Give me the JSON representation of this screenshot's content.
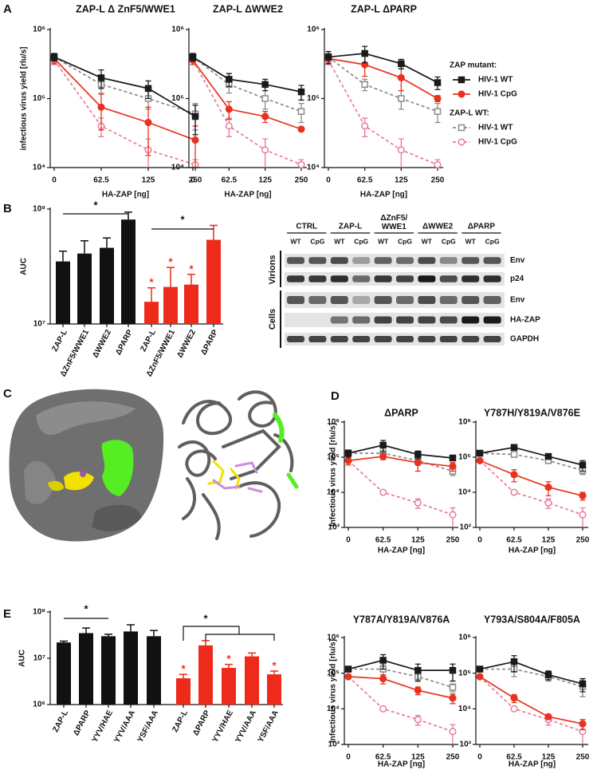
{
  "panels": [
    "A",
    "B",
    "C",
    "D",
    "E"
  ],
  "chart_data": [
    {
      "type": "line",
      "title": "ZAP-L Δ ZnF5/WWE1",
      "y_label": "infectious virus yield [rlu/s]",
      "x_label": "HA-ZAP [ng]",
      "categories": [
        "0",
        "62.5",
        "125",
        "250"
      ],
      "log_y": true,
      "ylim": [
        10000,
        1000000
      ],
      "yticks": [
        {
          "value": 10000,
          "label": "10⁴"
        },
        {
          "value": 100000,
          "label": "10⁵"
        },
        {
          "value": 1000000,
          "label": "10⁶"
        }
      ],
      "series": [
        {
          "color": "#1a1a1a",
          "marker": "square",
          "filled": true,
          "dashed": false,
          "values": [
            400000,
            200000,
            140000,
            55000
          ],
          "errors": [
            50000,
            60000,
            40000,
            25000
          ]
        },
        {
          "color": "#e8321e",
          "marker": "circle",
          "filled": true,
          "dashed": false,
          "values": [
            380000,
            75000,
            45000,
            25000
          ],
          "errors": [
            60000,
            40000,
            30000,
            15000
          ]
        },
        {
          "color": "#8a8a8a",
          "marker": "square",
          "filled": false,
          "dashed": true,
          "values": [
            400000,
            160000,
            100000,
            60000
          ],
          "errors": [
            50000,
            40000,
            30000,
            25000
          ]
        },
        {
          "color": "#e87a9a",
          "marker": "circle",
          "filled": false,
          "dashed": true,
          "values": [
            360000,
            40000,
            18000,
            11000
          ],
          "errors": [
            50000,
            12000,
            8000,
            2000
          ]
        }
      ]
    },
    {
      "type": "line",
      "title": "ZAP-L ΔWWE2",
      "x_label": "HA-ZAP [ng]",
      "categories": [
        "0",
        "62.5",
        "125",
        "250"
      ],
      "log_y": true,
      "ylim": [
        10000,
        1000000
      ],
      "yticks": [
        {
          "value": 10000,
          "label": "10⁴"
        },
        {
          "value": 100000,
          "label": "10⁵"
        },
        {
          "value": 1000000,
          "label": "10⁶"
        }
      ],
      "series": [
        {
          "color": "#1a1a1a",
          "marker": "square",
          "filled": true,
          "dashed": false,
          "values": [
            400000,
            190000,
            160000,
            125000
          ],
          "errors": [
            50000,
            40000,
            30000,
            30000
          ]
        },
        {
          "color": "#e8321e",
          "marker": "circle",
          "filled": true,
          "dashed": false,
          "values": [
            360000,
            70000,
            55000,
            36000
          ],
          "errors": [
            50000,
            20000,
            10000,
            0
          ]
        },
        {
          "color": "#8a8a8a",
          "marker": "square",
          "filled": false,
          "dashed": true,
          "values": [
            400000,
            160000,
            100000,
            65000
          ],
          "errors": [
            50000,
            40000,
            30000,
            20000
          ]
        },
        {
          "color": "#e87a9a",
          "marker": "circle",
          "filled": false,
          "dashed": true,
          "values": [
            360000,
            40000,
            18000,
            11000
          ],
          "errors": [
            50000,
            12000,
            8000,
            2000
          ]
        }
      ]
    },
    {
      "type": "line",
      "title": "ZAP-L ΔPARP",
      "x_label": "HA-ZAP [ng]",
      "categories": [
        "0",
        "62.5",
        "125",
        "250"
      ],
      "log_y": true,
      "ylim": [
        10000,
        1000000
      ],
      "yticks": [
        {
          "value": 10000,
          "label": "10⁴"
        },
        {
          "value": 100000,
          "label": "10⁵"
        },
        {
          "value": 1000000,
          "label": "10⁶"
        }
      ],
      "legend_groups": [
        "ZAP mutant:",
        "ZAP-L WT:"
      ],
      "series": [
        {
          "name": "HIV-1 WT",
          "group": 0,
          "color": "#1a1a1a",
          "marker": "square",
          "filled": true,
          "dashed": false,
          "values": [
            400000,
            450000,
            320000,
            170000
          ],
          "errors": [
            80000,
            120000,
            50000,
            35000
          ]
        },
        {
          "name": "HIV-1 CpG",
          "group": 0,
          "color": "#e8321e",
          "marker": "circle",
          "filled": true,
          "dashed": false,
          "values": [
            380000,
            310000,
            200000,
            100000
          ],
          "errors": [
            60000,
            100000,
            70000,
            10000
          ]
        },
        {
          "name": "HIV-1 WT",
          "group": 1,
          "color": "#8a8a8a",
          "marker": "square",
          "filled": false,
          "dashed": true,
          "values": [
            400000,
            160000,
            100000,
            65000
          ],
          "errors": [
            50000,
            30000,
            30000,
            20000
          ]
        },
        {
          "name": "HIV-1 CpG",
          "group": 1,
          "color": "#e87a9a",
          "marker": "circle",
          "filled": false,
          "dashed": true,
          "values": [
            360000,
            40000,
            18000,
            11000
          ],
          "errors": [
            50000,
            12000,
            8000,
            2000
          ]
        }
      ]
    },
    {
      "type": "bar",
      "y_label": "AUC",
      "categories": [
        "ZAP-L",
        "ΔZnF5/WWE1",
        "ΔWWE2",
        "ΔPARP",
        "ZAP-L",
        "ΔZnF5/WWE1",
        "ΔWWE2",
        "ΔPARP"
      ],
      "colors": [
        "#111111",
        "#111111",
        "#111111",
        "#111111",
        "#ee2a1a",
        "#ee2a1a",
        "#ee2a1a",
        "#ee2a1a"
      ],
      "values": [
        35000000,
        41000000,
        46000000,
        81000000,
        15600000,
        21000000,
        22000000,
        54000000
      ],
      "errors": [
        8000000,
        12000000,
        10000000,
        13000000,
        5000000,
        10000000,
        5000000,
        18000000
      ],
      "sig_labels": [
        null,
        null,
        null,
        null,
        "*",
        "*",
        "*",
        null
      ],
      "sig_color": "#ee2a1a",
      "annotations": [
        "*",
        "*"
      ],
      "log_y": true,
      "ylim": [
        10000000,
        100000000
      ],
      "yticks": [
        {
          "value": 10000000,
          "label": "10⁷"
        },
        {
          "value": 100000000,
          "label": "10⁸"
        }
      ]
    },
    {
      "type": "line",
      "title": "ΔPARP",
      "y_label": "infectious virus yield [rlu/s]",
      "x_label": "HA-ZAP [ng]",
      "categories": [
        "0",
        "62.5",
        "125",
        "250"
      ],
      "log_y": true,
      "ylim": [
        1000,
        1000000
      ],
      "yticks": [
        {
          "value": 1000,
          "label": "10³"
        },
        {
          "value": 10000,
          "label": "10⁴"
        },
        {
          "value": 100000,
          "label": "10⁵"
        },
        {
          "value": 1000000,
          "label": "10⁶"
        }
      ],
      "series": [
        {
          "color": "#1a1a1a",
          "marker": "square",
          "filled": true,
          "dashed": false,
          "values": [
            130000,
            220000,
            120000,
            95000
          ],
          "errors": [
            30000,
            80000,
            30000,
            10000
          ]
        },
        {
          "color": "#e8321e",
          "marker": "circle",
          "filled": true,
          "dashed": false,
          "values": [
            80000,
            105000,
            70000,
            55000
          ],
          "errors": [
            20000,
            20000,
            30000,
            15000
          ]
        },
        {
          "color": "#8a8a8a",
          "marker": "square",
          "filled": false,
          "dashed": true,
          "values": [
            130000,
            130000,
            80000,
            40000
          ],
          "errors": [
            20000,
            20000,
            20000,
            10000
          ]
        },
        {
          "color": "#e87a9a",
          "marker": "circle",
          "filled": false,
          "dashed": true,
          "values": [
            80000,
            10000,
            5000,
            2300
          ],
          "errors": [
            10000,
            1000,
            1500,
            1300
          ]
        }
      ]
    },
    {
      "type": "line",
      "title": "Y787H/Y819A/V876E",
      "x_label": "HA-ZAP [ng]",
      "categories": [
        "0",
        "62.5",
        "125",
        "250"
      ],
      "log_y": true,
      "ylim": [
        1000,
        1000000
      ],
      "yticks": [
        {
          "value": 1000,
          "label": "10³"
        },
        {
          "value": 10000,
          "label": "10⁴"
        },
        {
          "value": 100000,
          "label": "10⁵"
        },
        {
          "value": 1000000,
          "label": "10⁶"
        }
      ],
      "series": [
        {
          "color": "#1a1a1a",
          "marker": "square",
          "filled": true,
          "dashed": false,
          "values": [
            130000,
            190000,
            105000,
            60000
          ],
          "errors": [
            20000,
            20000,
            10000,
            20000
          ]
        },
        {
          "color": "#e8321e",
          "marker": "circle",
          "filled": true,
          "dashed": false,
          "values": [
            80000,
            32000,
            14000,
            8000
          ],
          "errors": [
            10000,
            12000,
            6000,
            2000
          ]
        },
        {
          "color": "#8a8a8a",
          "marker": "square",
          "filled": false,
          "dashed": true,
          "values": [
            130000,
            120000,
            80000,
            42000
          ],
          "errors": [
            20000,
            20000,
            10000,
            10000
          ]
        },
        {
          "color": "#e87a9a",
          "marker": "circle",
          "filled": false,
          "dashed": true,
          "values": [
            80000,
            10000,
            5000,
            2300
          ],
          "errors": [
            10000,
            1000,
            1500,
            1300
          ]
        }
      ]
    },
    {
      "type": "line",
      "title": "Y787A/Y819A/V876A",
      "y_label": "infectious virus yield [rlu/s]",
      "x_label": "HA-ZAP [ng]",
      "categories": [
        "0",
        "62.5",
        "125",
        "250"
      ],
      "log_y": true,
      "ylim": [
        1000,
        1000000
      ],
      "yticks": [
        {
          "value": 1000,
          "label": "10³"
        },
        {
          "value": 10000,
          "label": "10⁴"
        },
        {
          "value": 100000,
          "label": "10⁵"
        },
        {
          "value": 1000000,
          "label": "10⁶"
        }
      ],
      "series": [
        {
          "color": "#1a1a1a",
          "marker": "square",
          "filled": true,
          "dashed": false,
          "values": [
            130000,
            230000,
            120000,
            120000
          ],
          "errors": [
            20000,
            100000,
            60000,
            60000
          ]
        },
        {
          "color": "#e8321e",
          "marker": "circle",
          "filled": true,
          "dashed": false,
          "values": [
            80000,
            70000,
            33000,
            20000
          ],
          "errors": [
            10000,
            20000,
            8000,
            6000
          ]
        },
        {
          "color": "#8a8a8a",
          "marker": "square",
          "filled": false,
          "dashed": true,
          "values": [
            130000,
            130000,
            80000,
            40000
          ],
          "errors": [
            20000,
            40000,
            20000,
            10000
          ]
        },
        {
          "color": "#e87a9a",
          "marker": "circle",
          "filled": false,
          "dashed": true,
          "values": [
            80000,
            10000,
            5000,
            2300
          ],
          "errors": [
            10000,
            1000,
            1500,
            1300
          ]
        }
      ]
    },
    {
      "type": "line",
      "title": "Y793A/S804A/F805A",
      "x_label": "HA-ZAP [ng]",
      "categories": [
        "0",
        "62.5",
        "125",
        "250"
      ],
      "log_y": true,
      "ylim": [
        1000,
        1000000
      ],
      "yticks": [
        {
          "value": 1000,
          "label": "10³"
        },
        {
          "value": 10000,
          "label": "10⁴"
        },
        {
          "value": 100000,
          "label": "10⁵"
        },
        {
          "value": 1000000,
          "label": "10⁶"
        }
      ],
      "series": [
        {
          "color": "#1a1a1a",
          "marker": "square",
          "filled": true,
          "dashed": false,
          "values": [
            130000,
            210000,
            90000,
            50000
          ],
          "errors": [
            20000,
            100000,
            25000,
            20000
          ]
        },
        {
          "color": "#e8321e",
          "marker": "circle",
          "filled": true,
          "dashed": false,
          "values": [
            80000,
            20000,
            6000,
            3800
          ],
          "errors": [
            10000,
            5000,
            1000,
            1200
          ]
        },
        {
          "color": "#8a8a8a",
          "marker": "square",
          "filled": false,
          "dashed": true,
          "values": [
            130000,
            130000,
            80000,
            42000
          ],
          "errors": [
            20000,
            50000,
            20000,
            20000
          ]
        },
        {
          "color": "#e87a9a",
          "marker": "circle",
          "filled": false,
          "dashed": true,
          "values": [
            80000,
            10000,
            5000,
            2300
          ],
          "errors": [
            10000,
            1000,
            1500,
            1300
          ]
        }
      ]
    },
    {
      "type": "bar",
      "y_label": "AUC",
      "categories": [
        "ZAP-L",
        "ΔPARP",
        "YYV/HAE",
        "YYV/AAA",
        "YSF/AAA",
        "ZAP-L",
        "ΔPARP",
        "YYV/HAE",
        "YYV/AAA",
        "YSF/AAA"
      ],
      "colors": [
        "#111111",
        "#111111",
        "#111111",
        "#111111",
        "#111111",
        "#ee2a1a",
        "#ee2a1a",
        "#ee2a1a",
        "#ee2a1a",
        "#ee2a1a"
      ],
      "values": [
        22000000,
        35000000,
        30000000,
        38000000,
        30000000,
        3700000,
        19000000,
        6200000,
        11000000,
        4500000
      ],
      "errors": [
        1500000,
        10000000,
        3000000,
        15000000,
        10000000,
        800000,
        5000000,
        1200000,
        2000000,
        800000
      ],
      "sig_labels": [
        null,
        null,
        null,
        null,
        null,
        "*",
        null,
        "*",
        null,
        "*"
      ],
      "sig_color": "#ee2a1a",
      "annotations": [
        "*",
        "*"
      ],
      "log_y": true,
      "ylim": [
        1000000,
        100000000
      ],
      "yticks": [
        {
          "value": 1000000,
          "label": "10⁶"
        },
        {
          "value": 10000000,
          "label": "10⁷"
        },
        {
          "value": 100000000,
          "label": "10⁸"
        }
      ]
    }
  ],
  "blot": {
    "column_groups": [
      "CTRL",
      "ZAP-L",
      "ΔZnF5/\nWWE1",
      "ΔWWE2",
      "ΔPARP"
    ],
    "lanes": [
      "WT",
      "CpG",
      "WT",
      "CpG",
      "WT",
      "CpG",
      "WT",
      "CpG",
      "WT",
      "CpG"
    ],
    "row_groups": [
      "Virions",
      "Cells"
    ],
    "bands": [
      "Env",
      "p24",
      "Env",
      "HA-ZAP",
      "GAPDH"
    ]
  }
}
